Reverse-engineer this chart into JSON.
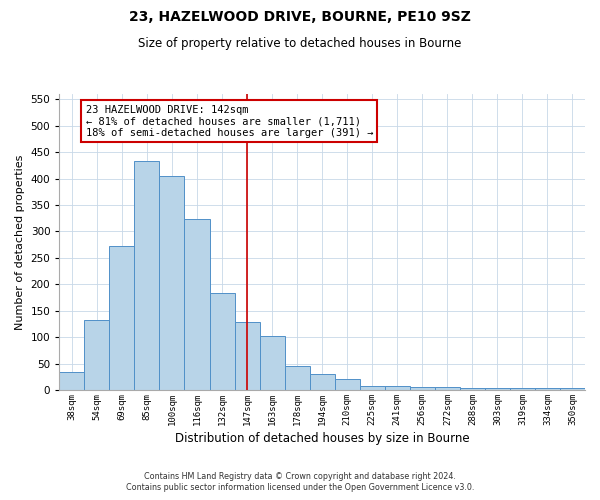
{
  "title": "23, HAZELWOOD DRIVE, BOURNE, PE10 9SZ",
  "subtitle": "Size of property relative to detached houses in Bourne",
  "xlabel": "Distribution of detached houses by size in Bourne",
  "ylabel": "Number of detached properties",
  "bar_labels": [
    "38sqm",
    "54sqm",
    "69sqm",
    "85sqm",
    "100sqm",
    "116sqm",
    "132sqm",
    "147sqm",
    "163sqm",
    "178sqm",
    "194sqm",
    "210sqm",
    "225sqm",
    "241sqm",
    "256sqm",
    "272sqm",
    "288sqm",
    "303sqm",
    "319sqm",
    "334sqm",
    "350sqm"
  ],
  "bar_values": [
    35,
    133,
    272,
    433,
    405,
    323,
    184,
    128,
    103,
    46,
    30,
    21,
    8,
    8,
    5,
    5,
    3,
    3,
    3,
    3,
    3
  ],
  "bar_color": "#b8d4e8",
  "bar_edge_color": "#5090c8",
  "vline_index": 7,
  "vline_color": "#cc0000",
  "annotation_lines": [
    "23 HAZELWOOD DRIVE: 142sqm",
    "← 81% of detached houses are smaller (1,711)",
    "18% of semi-detached houses are larger (391) →"
  ],
  "annotation_box_edge_color": "#cc0000",
  "ylim": [
    0,
    560
  ],
  "yticks": [
    0,
    50,
    100,
    150,
    200,
    250,
    300,
    350,
    400,
    450,
    500,
    550
  ],
  "footer_line1": "Contains HM Land Registry data © Crown copyright and database right 2024.",
  "footer_line2": "Contains public sector information licensed under the Open Government Licence v3.0.",
  "bg_color": "#ffffff",
  "grid_color": "#c8d8e8"
}
